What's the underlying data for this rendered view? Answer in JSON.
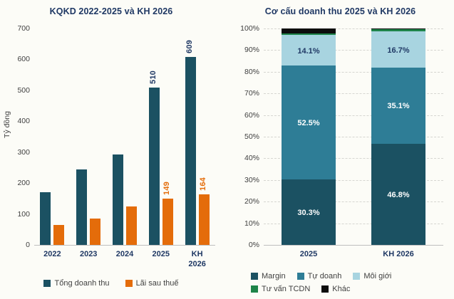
{
  "page": {
    "background": "#fcfcf7",
    "accent_navy": "#1f3864"
  },
  "chart_data": [
    {
      "type": "bar",
      "stacked": false,
      "title": "KQKD 2022-2025 và KH 2026",
      "xlabel": "",
      "ylabel": "Tỷ đồng",
      "ylim": [
        0,
        700
      ],
      "ytick_step": 100,
      "ytick_suffix": "",
      "grid": false,
      "legend_position": "bottom",
      "categories": [
        "2022",
        "2023",
        "2024",
        "2025",
        "KH\n2026"
      ],
      "series": [
        {
          "name": "Tổng doanh thu",
          "color": "#1b5162",
          "label_color": "#1f3864",
          "values": [
            170,
            243,
            292,
            510,
            609
          ],
          "labels": [
            "",
            "",
            "",
            "510",
            "609"
          ]
        },
        {
          "name": "Lãi sau thuế",
          "color": "#e46c0a",
          "label_color": "#e46c0a",
          "values": [
            65,
            86,
            125,
            149,
            164
          ],
          "labels": [
            "",
            "",
            "",
            "149",
            "164"
          ]
        }
      ]
    },
    {
      "type": "bar",
      "stacked": true,
      "title": "Cơ cấu doanh thu 2025 và KH 2026",
      "xlabel": "",
      "ylabel": "",
      "ylim": [
        0,
        100
      ],
      "ytick_step": 10,
      "ytick_suffix": "%",
      "grid": true,
      "legend_position": "bottom",
      "categories": [
        "2025",
        "KH 2026"
      ],
      "series": [
        {
          "name": "Margin",
          "color": "#1b5162",
          "label_color": "#ffffff",
          "values": [
            30.3,
            46.8
          ],
          "labels": [
            "30.3%",
            "46.8%"
          ]
        },
        {
          "name": "Tự doanh",
          "color": "#2e7d96",
          "label_color": "#ffffff",
          "values": [
            52.5,
            35.1
          ],
          "labels": [
            "52.5%",
            "35.1%"
          ]
        },
        {
          "name": "Môi giới",
          "color": "#a8d4e0",
          "label_color": "#1f3864",
          "values": [
            14.1,
            16.7
          ],
          "labels": [
            "14.1%",
            "16.7%"
          ]
        },
        {
          "name": "Tư vấn TCDN",
          "color": "#1e8449",
          "label_color": "#1e8449",
          "values": [
            0.8,
            1.0
          ],
          "labels": [
            "",
            ""
          ]
        },
        {
          "name": "Khác",
          "color": "#0d0d0d",
          "label_color": "#0d0d0d",
          "values": [
            2.3,
            0.4
          ],
          "labels": [
            "",
            ""
          ]
        }
      ]
    }
  ]
}
